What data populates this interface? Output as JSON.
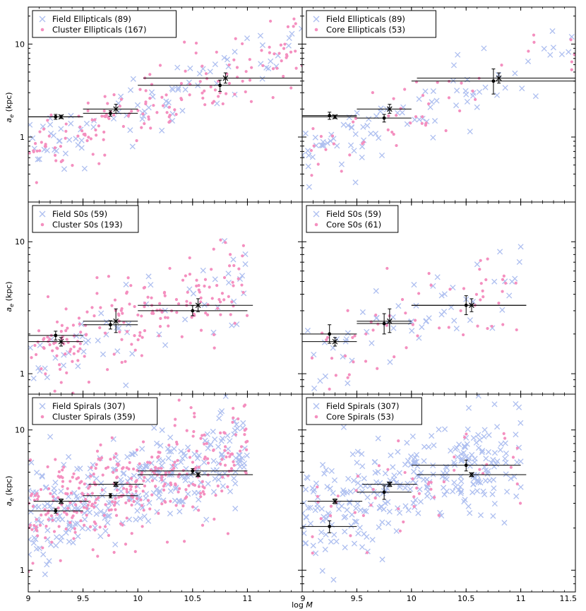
{
  "colors": {
    "field": "#aebff0",
    "cluster": "#f48fbf",
    "marker": "#000000",
    "frame": "#000000"
  },
  "axes": {
    "x_label_log": "log ",
    "x_label_var": "M",
    "y_label_main": "a",
    "y_label_sub": "e",
    "y_label_unit": " (kpc)",
    "x_ticks_left": [
      "9",
      "9.5",
      "10",
      "10.5",
      "11"
    ],
    "x_ticks_right": [
      "9",
      "9.5",
      "10",
      "10.5",
      "11",
      "11.5"
    ],
    "y_tick_labels": [
      "1",
      "10"
    ]
  },
  "chart_data": [
    {
      "type": "scatter",
      "row": 0,
      "col": 0,
      "xlim": [
        9.0,
        11.5
      ],
      "ylim": [
        0.2,
        25
      ],
      "yscale": "log",
      "legend": [
        {
          "label": "Field Ellipticals (89)",
          "marker": "x"
        },
        {
          "label": "Cluster Ellipticals (167)",
          "marker": "dot"
        }
      ],
      "series": [
        {
          "name": "Field Ellipticals",
          "marker": "x",
          "n": 89,
          "x_range": [
            9.0,
            11.5
          ],
          "y_center": 1.6
        },
        {
          "name": "Cluster Ellipticals",
          "marker": "dot",
          "n": 167,
          "x_range": [
            9.0,
            11.5
          ],
          "y_center": 1.6
        }
      ],
      "binned": [
        {
          "marker": "x",
          "x": 9.3,
          "y": 1.65,
          "xerr": [
            9.0,
            9.5
          ],
          "yerr": [
            1.58,
            1.72
          ]
        },
        {
          "marker": "x",
          "x": 9.8,
          "y": 2.0,
          "xerr": [
            9.5,
            10.0
          ],
          "yerr": [
            1.8,
            2.25
          ]
        },
        {
          "marker": "x",
          "x": 10.8,
          "y": 4.3,
          "xerr": [
            10.05,
            11.5
          ],
          "yerr": [
            3.8,
            4.9
          ]
        },
        {
          "marker": "dot",
          "x": 9.25,
          "y": 1.65,
          "xerr": [
            9.0,
            9.5
          ],
          "yerr": [
            1.55,
            1.75
          ]
        },
        {
          "marker": "dot",
          "x": 9.75,
          "y": 1.8,
          "xerr": [
            9.5,
            10.0
          ],
          "yerr": [
            1.68,
            1.92
          ]
        },
        {
          "marker": "dot",
          "x": 10.75,
          "y": 3.6,
          "xerr": [
            10.0,
            11.5
          ],
          "yerr": [
            3.1,
            4.1
          ]
        }
      ]
    },
    {
      "type": "scatter",
      "row": 0,
      "col": 1,
      "xlim": [
        9.0,
        11.5
      ],
      "ylim": [
        0.2,
        25
      ],
      "yscale": "log",
      "legend": [
        {
          "label": "Field Ellipticals (89)",
          "marker": "x"
        },
        {
          "label": "Core Ellipticals (53)",
          "marker": "dot"
        }
      ],
      "series": [
        {
          "name": "Field Ellipticals",
          "marker": "x",
          "n": 89,
          "x_range": [
            9.0,
            11.5
          ],
          "y_center": 1.6
        },
        {
          "name": "Core Ellipticals",
          "marker": "dot",
          "n": 53,
          "x_range": [
            9.0,
            11.5
          ],
          "y_center": 1.6
        }
      ],
      "binned": [
        {
          "marker": "x",
          "x": 9.3,
          "y": 1.65,
          "xerr": [
            9.0,
            9.5
          ],
          "yerr": [
            1.58,
            1.72
          ]
        },
        {
          "marker": "x",
          "x": 9.8,
          "y": 2.0,
          "xerr": [
            9.5,
            10.0
          ],
          "yerr": [
            1.8,
            2.25
          ]
        },
        {
          "marker": "x",
          "x": 10.8,
          "y": 4.3,
          "xerr": [
            10.05,
            11.5
          ],
          "yerr": [
            3.8,
            4.9
          ]
        },
        {
          "marker": "dot",
          "x": 9.25,
          "y": 1.7,
          "xerr": [
            9.0,
            9.5
          ],
          "yerr": [
            1.55,
            1.85
          ]
        },
        {
          "marker": "dot",
          "x": 9.75,
          "y": 1.6,
          "xerr": [
            9.5,
            10.0
          ],
          "yerr": [
            1.45,
            1.75
          ]
        },
        {
          "marker": "dot",
          "x": 10.75,
          "y": 4.0,
          "xerr": [
            10.0,
            11.5
          ],
          "yerr": [
            2.9,
            5.4
          ]
        }
      ]
    },
    {
      "type": "scatter",
      "row": 1,
      "col": 0,
      "xlim": [
        9.0,
        11.5
      ],
      "ylim": [
        0.7,
        20
      ],
      "yscale": "log",
      "legend": [
        {
          "label": "Field S0s (59)",
          "marker": "x"
        },
        {
          "label": "Cluster S0s (193)",
          "marker": "dot"
        }
      ],
      "series": [
        {
          "name": "Field S0s",
          "marker": "x",
          "n": 59,
          "x_range": [
            9.0,
            11.0
          ],
          "y_center": 2.3
        },
        {
          "name": "Cluster S0s",
          "marker": "dot",
          "n": 193,
          "x_range": [
            9.0,
            11.0
          ],
          "y_center": 2.3
        }
      ],
      "binned": [
        {
          "marker": "x",
          "x": 9.3,
          "y": 1.75,
          "xerr": [
            9.0,
            9.5
          ],
          "yerr": [
            1.62,
            1.88
          ]
        },
        {
          "marker": "x",
          "x": 9.8,
          "y": 2.5,
          "xerr": [
            9.5,
            10.0
          ],
          "yerr": [
            2.05,
            3.1
          ]
        },
        {
          "marker": "x",
          "x": 10.55,
          "y": 3.3,
          "xerr": [
            10.0,
            11.05
          ],
          "yerr": [
            2.95,
            3.7
          ]
        },
        {
          "marker": "dot",
          "x": 9.25,
          "y": 1.95,
          "xerr": [
            9.0,
            9.5
          ],
          "yerr": [
            1.8,
            2.1
          ]
        },
        {
          "marker": "dot",
          "x": 9.75,
          "y": 2.35,
          "xerr": [
            9.5,
            10.0
          ],
          "yerr": [
            2.18,
            2.52
          ]
        },
        {
          "marker": "dot",
          "x": 10.5,
          "y": 3.0,
          "xerr": [
            10.0,
            11.0
          ],
          "yerr": [
            2.75,
            3.28
          ]
        }
      ]
    },
    {
      "type": "scatter",
      "row": 1,
      "col": 1,
      "xlim": [
        9.0,
        11.5
      ],
      "ylim": [
        0.7,
        20
      ],
      "yscale": "log",
      "legend": [
        {
          "label": "Field S0s (59)",
          "marker": "x"
        },
        {
          "label": "Core S0s (61)",
          "marker": "dot"
        }
      ],
      "series": [
        {
          "name": "Field S0s",
          "marker": "x",
          "n": 59,
          "x_range": [
            9.0,
            11.0
          ],
          "y_center": 2.3
        },
        {
          "name": "Core S0s",
          "marker": "dot",
          "n": 61,
          "x_range": [
            9.0,
            11.0
          ],
          "y_center": 2.3
        }
      ],
      "binned": [
        {
          "marker": "x",
          "x": 9.3,
          "y": 1.75,
          "xerr": [
            9.0,
            9.5
          ],
          "yerr": [
            1.62,
            1.88
          ]
        },
        {
          "marker": "x",
          "x": 9.8,
          "y": 2.5,
          "xerr": [
            9.5,
            10.0
          ],
          "yerr": [
            2.05,
            3.1
          ]
        },
        {
          "marker": "x",
          "x": 10.55,
          "y": 3.3,
          "xerr": [
            10.0,
            11.05
          ],
          "yerr": [
            2.95,
            3.7
          ]
        },
        {
          "marker": "dot",
          "x": 9.25,
          "y": 2.0,
          "xerr": [
            9.0,
            9.5
          ],
          "yerr": [
            1.7,
            2.35
          ]
        },
        {
          "marker": "dot",
          "x": 9.75,
          "y": 2.4,
          "xerr": [
            9.5,
            10.0
          ],
          "yerr": [
            2.0,
            2.85
          ]
        },
        {
          "marker": "dot",
          "x": 10.5,
          "y": 3.3,
          "xerr": [
            10.0,
            11.05
          ],
          "yerr": [
            2.8,
            3.9
          ]
        }
      ]
    },
    {
      "type": "scatter",
      "row": 2,
      "col": 0,
      "xlim": [
        9.0,
        11.5
      ],
      "ylim": [
        0.7,
        18
      ],
      "yscale": "log",
      "legend": [
        {
          "label": "Field Spirals (307)",
          "marker": "x"
        },
        {
          "label": "Cluster Spirals (359)",
          "marker": "dot"
        }
      ],
      "series": [
        {
          "name": "Field Spirals",
          "marker": "x",
          "n": 307,
          "x_range": [
            9.0,
            11.0
          ],
          "y_center": 3.6
        },
        {
          "name": "Cluster Spirals",
          "marker": "dot",
          "n": 359,
          "x_range": [
            9.0,
            11.0
          ],
          "y_center": 3.6
        }
      ],
      "binned": [
        {
          "marker": "x",
          "x": 9.3,
          "y": 3.1,
          "xerr": [
            9.05,
            9.55
          ],
          "yerr": [
            2.98,
            3.22
          ]
        },
        {
          "marker": "x",
          "x": 9.8,
          "y": 4.1,
          "xerr": [
            9.55,
            10.05
          ],
          "yerr": [
            3.95,
            4.25
          ]
        },
        {
          "marker": "x",
          "x": 10.55,
          "y": 4.8,
          "xerr": [
            10.0,
            11.05
          ],
          "yerr": [
            4.65,
            4.95
          ]
        },
        {
          "marker": "dot",
          "x": 9.25,
          "y": 2.65,
          "xerr": [
            9.0,
            9.5
          ],
          "yerr": [
            2.55,
            2.75
          ]
        },
        {
          "marker": "dot",
          "x": 9.75,
          "y": 3.4,
          "xerr": [
            9.5,
            10.0
          ],
          "yerr": [
            3.28,
            3.52
          ]
        },
        {
          "marker": "dot",
          "x": 10.5,
          "y": 5.1,
          "xerr": [
            10.0,
            11.0
          ],
          "yerr": [
            4.9,
            5.3
          ]
        }
      ]
    },
    {
      "type": "scatter",
      "row": 2,
      "col": 1,
      "xlim": [
        9.0,
        11.5
      ],
      "ylim": [
        0.7,
        18
      ],
      "yscale": "log",
      "legend": [
        {
          "label": "Field Spirals (307)",
          "marker": "x"
        },
        {
          "label": "Core Spirals (53)",
          "marker": "dot"
        }
      ],
      "series": [
        {
          "name": "Field Spirals",
          "marker": "x",
          "n": 307,
          "x_range": [
            9.0,
            11.0
          ],
          "y_center": 3.6
        },
        {
          "name": "Core Spirals",
          "marker": "dot",
          "n": 53,
          "x_range": [
            9.0,
            11.0
          ],
          "y_center": 3.6
        }
      ],
      "binned": [
        {
          "marker": "x",
          "x": 9.3,
          "y": 3.1,
          "xerr": [
            9.05,
            9.55
          ],
          "yerr": [
            2.98,
            3.22
          ]
        },
        {
          "marker": "x",
          "x": 9.8,
          "y": 4.1,
          "xerr": [
            9.55,
            10.05
          ],
          "yerr": [
            3.95,
            4.25
          ]
        },
        {
          "marker": "x",
          "x": 10.55,
          "y": 4.8,
          "xerr": [
            10.05,
            11.05
          ],
          "yerr": [
            4.65,
            4.95
          ]
        },
        {
          "marker": "dot",
          "x": 9.25,
          "y": 2.05,
          "xerr": [
            9.0,
            9.5
          ],
          "yerr": [
            1.85,
            2.25
          ]
        },
        {
          "marker": "dot",
          "x": 9.75,
          "y": 3.6,
          "xerr": [
            9.5,
            10.0
          ],
          "yerr": [
            3.2,
            4.0
          ]
        },
        {
          "marker": "dot",
          "x": 10.5,
          "y": 5.6,
          "xerr": [
            10.0,
            11.0
          ],
          "yerr": [
            5.1,
            6.1
          ]
        }
      ]
    }
  ]
}
